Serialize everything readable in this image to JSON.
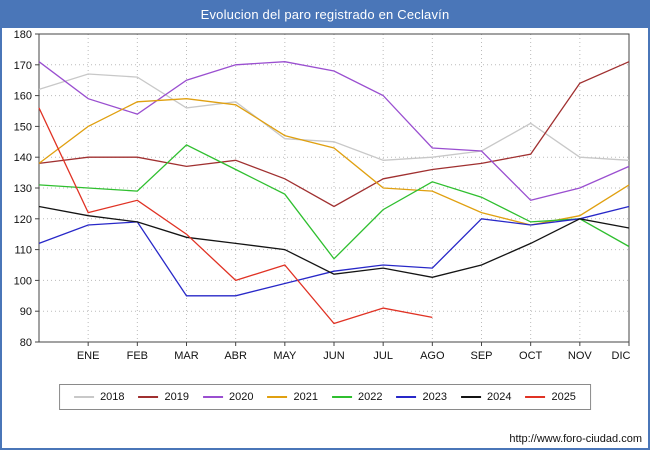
{
  "title_bar": {
    "title": "Evolucion del paro registrado en Ceclavín"
  },
  "footer": {
    "url": "http://www.foro-ciudad.com"
  },
  "chart_data": {
    "type": "line",
    "title": "Evolucion del paro registrado en Ceclavín",
    "x_tick_labels": [
      "ENE",
      "FEB",
      "MAR",
      "ABR",
      "MAY",
      "JUN",
      "JUL",
      "AGO",
      "SEP",
      "OCT",
      "NOV",
      "DIC"
    ],
    "x_note": "Each series has 13 plotted points; the first point sits on the y-axis just left of the ENE tick. 2025 ends at AGO.",
    "ylim": [
      80,
      180
    ],
    "y_tick_step": 10,
    "grid": true,
    "legend_position": "bottom",
    "axis_color": "#444444",
    "grid_color": "#bbbbbb",
    "series": [
      {
        "name": "2018",
        "color": "#c8c8c8",
        "values": [
          162,
          167,
          166,
          156,
          158,
          146,
          145,
          139,
          140,
          142,
          151,
          140,
          139
        ]
      },
      {
        "name": "2019",
        "color": "#a03030",
        "values": [
          138,
          140,
          140,
          137,
          139,
          133,
          124,
          133,
          136,
          138,
          141,
          164,
          171
        ]
      },
      {
        "name": "2020",
        "color": "#9a4fd0",
        "values": [
          171,
          159,
          154,
          165,
          170,
          171,
          168,
          160,
          143,
          142,
          126,
          130,
          137
        ]
      },
      {
        "name": "2021",
        "color": "#e0a010",
        "values": [
          138,
          150,
          158,
          159,
          157,
          147,
          143,
          130,
          129,
          122,
          118,
          121,
          131
        ]
      },
      {
        "name": "2022",
        "color": "#2fbf2f",
        "values": [
          131,
          130,
          129,
          144,
          136,
          128,
          107,
          123,
          132,
          127,
          119,
          120,
          111
        ]
      },
      {
        "name": "2023",
        "color": "#2828c8",
        "values": [
          112,
          118,
          119,
          95,
          95,
          99,
          103,
          105,
          104,
          120,
          118,
          120,
          124
        ]
      },
      {
        "name": "2024",
        "color": "#141414",
        "values": [
          124,
          121,
          119,
          114,
          112,
          110,
          102,
          104,
          101,
          105,
          112,
          120,
          117
        ]
      },
      {
        "name": "2025",
        "color": "#e03224",
        "values": [
          156,
          122,
          126,
          115,
          100,
          105,
          86,
          91,
          88
        ]
      }
    ]
  }
}
